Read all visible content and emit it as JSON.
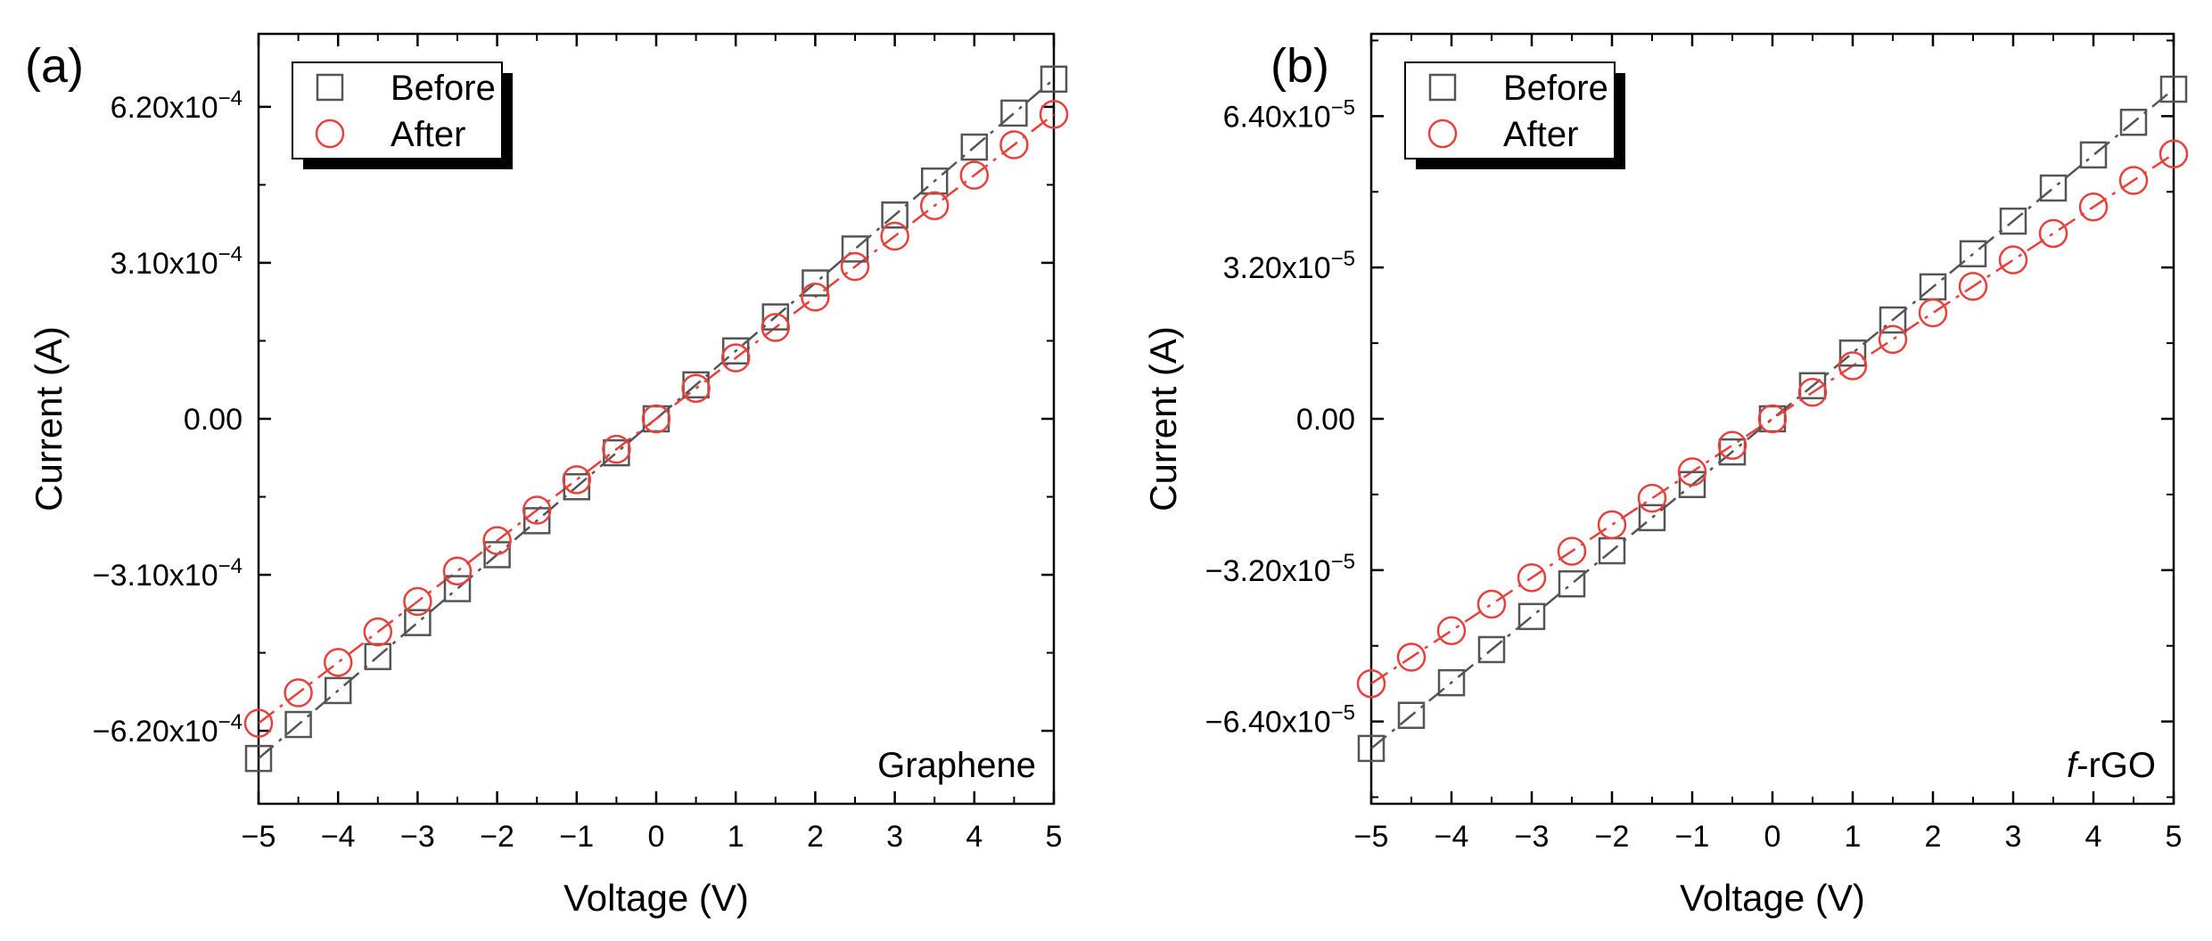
{
  "chart_data": [
    {
      "type": "scatter",
      "panel_label": "(a)",
      "annotation_prefix": "",
      "annotation": "Graphene",
      "xlabel": "Voltage (V)",
      "ylabel": "Current (A)",
      "xlim": [
        -5,
        5
      ],
      "ylim": [
        -0.000765,
        0.000765
      ],
      "xticks": [
        -5,
        -4,
        -3,
        -2,
        -1,
        0,
        1,
        2,
        3,
        4,
        5
      ],
      "xtick_labels": [
        "−5",
        "−4",
        "−3",
        "−2",
        "−1",
        "0",
        "1",
        "2",
        "3",
        "4",
        "5"
      ],
      "yticks": [
        -0.00062,
        -0.00031,
        0,
        0.00031,
        0.00062
      ],
      "ytick_labels": [
        {
          "mant": "−6.20x10",
          "exp": "−4"
        },
        {
          "mant": "−3.10x10",
          "exp": "−4"
        },
        {
          "mant": "0.00",
          "exp": ""
        },
        {
          "mant": "3.10x10",
          "exp": "−4"
        },
        {
          "mant": "6.20x10",
          "exp": "−4"
        }
      ],
      "legend": {
        "position": "top-left",
        "entries": [
          "Before",
          "After"
        ]
      },
      "x": [
        -5,
        -4.5,
        -4,
        -3.5,
        -3,
        -2.5,
        -2,
        -1.5,
        -1,
        -0.5,
        0,
        0.5,
        1,
        1.5,
        2,
        2.5,
        3,
        3.5,
        4,
        4.5,
        5
      ],
      "series": [
        {
          "name": "Before",
          "marker": "square",
          "color": "#555555",
          "values": [
            -0.000675,
            -0.0006075,
            -0.00054,
            -0.0004725,
            -0.000405,
            -0.0003375,
            -0.00027,
            -0.0002025,
            -0.000135,
            -6.75e-05,
            0,
            6.75e-05,
            0.000135,
            0.0002025,
            0.00027,
            0.0003375,
            0.000405,
            0.0004725,
            0.00054,
            0.0006075,
            0.000675
          ]
        },
        {
          "name": "After",
          "marker": "circle",
          "color": "#e8413c",
          "values": [
            -0.000605,
            -0.0005445,
            -0.000484,
            -0.0004235,
            -0.000363,
            -0.0003025,
            -0.000242,
            -0.0001815,
            -0.000121,
            -6.05e-05,
            0,
            6.05e-05,
            0.000121,
            0.0001815,
            0.000242,
            0.0003025,
            0.000363,
            0.0004235,
            0.000484,
            0.0005445,
            0.000605
          ]
        }
      ]
    },
    {
      "type": "scatter",
      "panel_label": "(b)",
      "annotation_prefix": "f",
      "annotation": "-rGO",
      "xlabel": "Voltage (V)",
      "ylabel": "Current (A)",
      "xlim": [
        -5,
        5
      ],
      "ylim": [
        -8.14e-05,
        8.14e-05
      ],
      "xticks": [
        -5,
        -4,
        -3,
        -2,
        -1,
        0,
        1,
        2,
        3,
        4,
        5
      ],
      "xtick_labels": [
        "−5",
        "−4",
        "−3",
        "−2",
        "−1",
        "0",
        "1",
        "2",
        "3",
        "4",
        "5"
      ],
      "yticks": [
        -6.4e-05,
        -3.2e-05,
        0,
        3.2e-05,
        6.4e-05
      ],
      "ytick_labels": [
        {
          "mant": "−6.40x10",
          "exp": "−5"
        },
        {
          "mant": "−3.20x10",
          "exp": "−5"
        },
        {
          "mant": "0.00",
          "exp": ""
        },
        {
          "mant": "3.20x10",
          "exp": "−5"
        },
        {
          "mant": "6.40x10",
          "exp": "−5"
        }
      ],
      "legend": {
        "position": "top-left",
        "entries": [
          "Before",
          "After"
        ]
      },
      "x": [
        -5,
        -4.5,
        -4,
        -3.5,
        -3,
        -2.5,
        -2,
        -1.5,
        -1,
        -0.5,
        0,
        0.5,
        1,
        1.5,
        2,
        2.5,
        3,
        3.5,
        4,
        4.5,
        5
      ],
      "series": [
        {
          "name": "Before",
          "marker": "square",
          "color": "#555555",
          "values": [
            -6.97e-05,
            -6.27e-05,
            -5.58e-05,
            -4.88e-05,
            -4.18e-05,
            -3.49e-05,
            -2.79e-05,
            -2.09e-05,
            -1.39e-05,
            -7e-06,
            0,
            7e-06,
            1.39e-05,
            2.09e-05,
            2.79e-05,
            3.49e-05,
            4.18e-05,
            4.88e-05,
            5.58e-05,
            6.27e-05,
            6.97e-05
          ]
        },
        {
          "name": "After",
          "marker": "circle",
          "color": "#e8413c",
          "values": [
            -5.6e-05,
            -5.04e-05,
            -4.48e-05,
            -3.92e-05,
            -3.36e-05,
            -2.8e-05,
            -2.24e-05,
            -1.68e-05,
            -1.12e-05,
            -5.6e-06,
            0,
            5.6e-06,
            1.12e-05,
            1.68e-05,
            2.24e-05,
            2.8e-05,
            3.36e-05,
            3.92e-05,
            4.48e-05,
            5.04e-05,
            5.6e-05
          ]
        }
      ]
    }
  ]
}
